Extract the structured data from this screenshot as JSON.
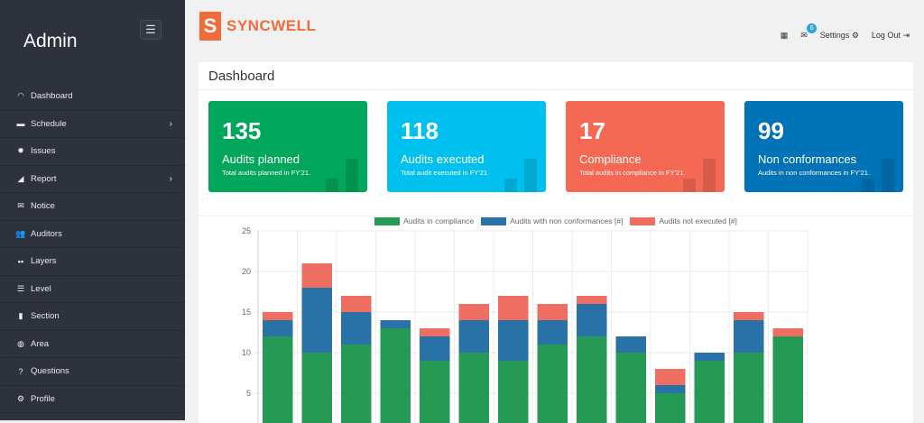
{
  "sidebar": {
    "brand": "Admin",
    "items": [
      {
        "label": "Dashboard",
        "icon": "◠",
        "icon_name": "tachometer-icon"
      },
      {
        "label": "Schedule",
        "icon": "▬",
        "icon_name": "calendar-icon",
        "has_children": true
      },
      {
        "label": "Issues",
        "icon": "✹",
        "icon_name": "bug-icon"
      },
      {
        "label": "Report",
        "icon": "◢",
        "icon_name": "area-chart-icon",
        "has_children": true
      },
      {
        "label": "Notice",
        "icon": "✉",
        "icon_name": "envelope-icon"
      },
      {
        "label": "Auditors",
        "icon": "👥",
        "icon_name": "users-icon"
      },
      {
        "label": "Layers",
        "icon": "▪▪",
        "icon_name": "th-large-icon"
      },
      {
        "label": "Level",
        "icon": "☰",
        "icon_name": "database-icon"
      },
      {
        "label": "Section",
        "icon": "▮",
        "icon_name": "book-icon"
      },
      {
        "label": "Area",
        "icon": "◍",
        "icon_name": "globe-icon"
      },
      {
        "label": "Questions",
        "icon": "?",
        "icon_name": "question-circle-icon"
      },
      {
        "label": "Profile",
        "icon": "⚙",
        "icon_name": "cog-icon"
      }
    ]
  },
  "header": {
    "logo_text": "SYNCWELL",
    "logo_mark": "S",
    "mail_count": "6",
    "settings": "Settings",
    "logout": "Log Out"
  },
  "page": {
    "title": "Dashboard"
  },
  "cards": [
    {
      "value": "135",
      "label": "Audits planned",
      "sub": "Total audits planned in FY'21.",
      "color": "#00a65a"
    },
    {
      "value": "118",
      "label": "Audits executed",
      "sub": "Total audit executed in FY'21.",
      "color": "#00c0ef"
    },
    {
      "value": "17",
      "label": "Compliance",
      "sub": "Total audits in compliance in FY'21.",
      "color": "#f56954"
    },
    {
      "value": "99",
      "label": "Non conformances",
      "sub": "Audits in non conformances in FY'21.",
      "color": "#0073b7"
    }
  ],
  "chart_data": {
    "type": "bar",
    "stacked": true,
    "grid": true,
    "legend": "top",
    "ylim": [
      0,
      25
    ],
    "yticks": [
      5,
      10,
      15,
      20,
      25
    ],
    "series": [
      {
        "name": "Audits in compliance",
        "color": "#259a55",
        "values": [
          12,
          10,
          11,
          13,
          9,
          10,
          9,
          11,
          12,
          10,
          5,
          9,
          10,
          12
        ]
      },
      {
        "name": "Audits with non conformances [#]",
        "color": "#2872a8",
        "values": [
          2,
          8,
          4,
          1,
          3,
          4,
          5,
          3,
          4,
          2,
          1,
          1,
          4,
          0
        ]
      },
      {
        "name": "Audits not executed [#]",
        "color": "#ee6f62",
        "values": [
          1,
          3,
          2,
          0,
          1,
          2,
          3,
          2,
          1,
          0,
          2,
          0,
          1,
          1
        ]
      }
    ]
  }
}
